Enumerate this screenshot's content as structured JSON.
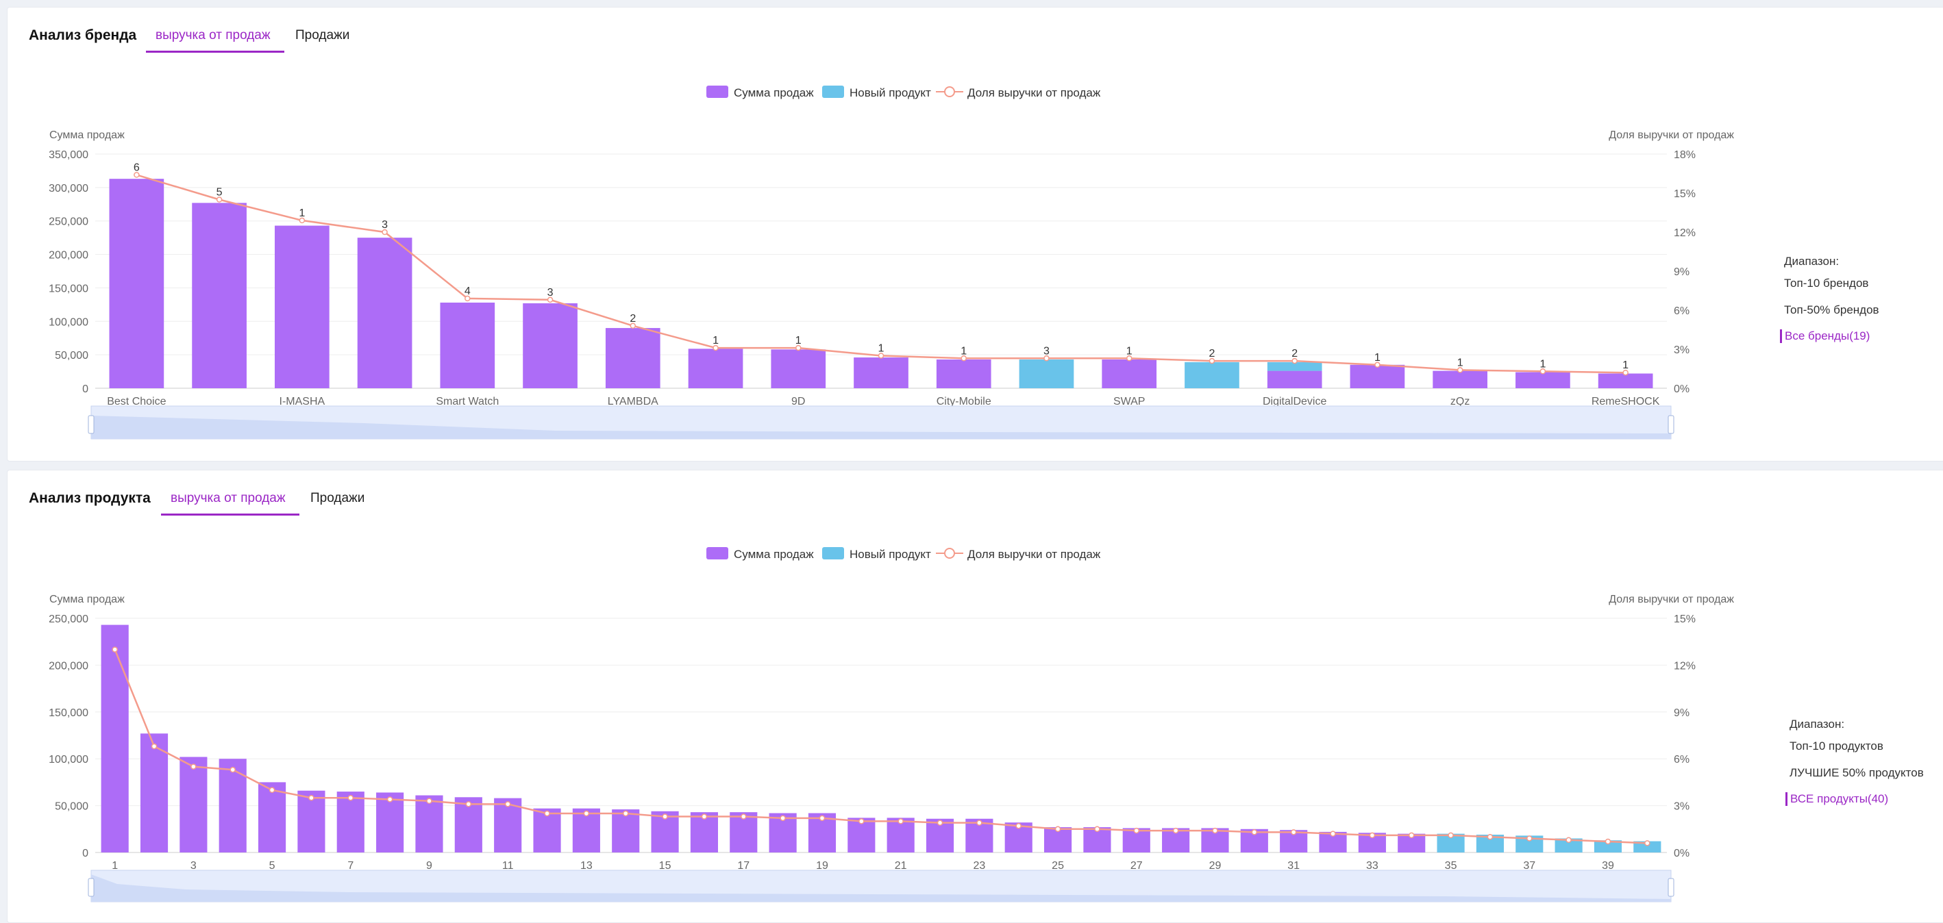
{
  "brand": {
    "title": "Анализ бренда",
    "tabs": [
      {
        "label": "выручка от продаж"
      },
      {
        "label": "Продажи"
      }
    ],
    "legend": {
      "sales": "Сумма продаж",
      "new": "Новый продукт",
      "share": "Доля выручки от продаж"
    },
    "range": {
      "heading": "Диапазон:",
      "top10": "Топ-10 брендов",
      "top50": "Топ-50% брендов",
      "all": "Все бренды(19)"
    }
  },
  "product": {
    "title": "Анализ продукта",
    "tabs": [
      {
        "label": "выручка от продаж"
      },
      {
        "label": "Продажи"
      }
    ],
    "legend": {
      "sales": "Сумма продаж",
      "new": "Новый продукт",
      "share": "Доля выручки от продаж"
    },
    "range": {
      "heading": "Диапазон:",
      "top10": "Топ-10 продуктов",
      "top50": "ЛУЧШИЕ 50% продуктов",
      "all": "ВСЕ продукты(40)"
    }
  },
  "colors": {
    "sales": "#ad6cf7",
    "new": "#69c3ea",
    "share": "#f49b8b",
    "accent": "#9b27c6"
  },
  "chart_data": [
    {
      "type": "bar",
      "ylabel": "Сумма продаж",
      "y2label": "Доля выручки от продаж",
      "ylim": [
        0,
        350000
      ],
      "y2lim": [
        0,
        18
      ],
      "yticks": [
        "0",
        "50,000",
        "100,000",
        "150,000",
        "200,000",
        "250,000",
        "300,000",
        "350,000"
      ],
      "y2ticks": [
        "0%",
        "3%",
        "6%",
        "9%",
        "12%",
        "15%",
        "18%"
      ],
      "xticklabels": [
        "Best Choice",
        "",
        "I-MASHA",
        "",
        "Smart Watch",
        "",
        "LYAMBDA",
        "",
        "9D",
        "",
        "City-Mobile",
        "",
        "SWAP",
        "",
        "DigitalDevice",
        "",
        "zQz",
        "",
        "RemeSHOCK"
      ],
      "series": [
        {
          "name": "Сумма продаж",
          "values": [
            313000,
            277000,
            243000,
            225000,
            128000,
            127000,
            90000,
            59000,
            58000,
            46000,
            43000,
            0,
            43000,
            0,
            26000,
            35000,
            26000,
            24000,
            22000
          ]
        },
        {
          "name": "Новый продукт",
          "values": [
            0,
            0,
            0,
            0,
            0,
            0,
            0,
            0,
            0,
            0,
            0,
            43000,
            0,
            39000,
            13000,
            0,
            0,
            0,
            0
          ]
        },
        {
          "name": "Доля выручки от продаж",
          "values": [
            16.4,
            14.5,
            12.9,
            12.0,
            6.9,
            6.8,
            4.8,
            3.1,
            3.1,
            2.5,
            2.3,
            2.3,
            2.3,
            2.1,
            2.1,
            1.8,
            1.4,
            1.3,
            1.2
          ]
        }
      ],
      "data_labels": [
        "6",
        "5",
        "1",
        "3",
        "4",
        "3",
        "2",
        "1",
        "1",
        "1",
        "1",
        "3",
        "1",
        "2",
        "2",
        "1",
        "1",
        "1",
        "1"
      ],
      "grid": true,
      "legend_position": "top-center"
    },
    {
      "type": "bar",
      "ylabel": "Сумма продаж",
      "y2label": "Доля выручки от продаж",
      "ylim": [
        0,
        250000
      ],
      "y2lim": [
        0,
        15
      ],
      "yticks": [
        "0",
        "50,000",
        "100,000",
        "150,000",
        "200,000",
        "250,000"
      ],
      "y2ticks": [
        "0%",
        "3%",
        "6%",
        "9%",
        "12%",
        "15%"
      ],
      "xticklabels": [
        "1",
        "",
        "3",
        "",
        "5",
        "",
        "7",
        "",
        "9",
        "",
        "11",
        "",
        "13",
        "",
        "15",
        "",
        "17",
        "",
        "19",
        "",
        "21",
        "",
        "23",
        "",
        "25",
        "",
        "27",
        "",
        "29",
        "",
        "31",
        "",
        "33",
        "",
        "35",
        "",
        "37",
        "",
        "39",
        ""
      ],
      "series": [
        {
          "name": "Сумма продаж",
          "values": [
            243000,
            127000,
            102000,
            100000,
            75000,
            66000,
            65000,
            64000,
            61000,
            59000,
            58000,
            47000,
            47000,
            46000,
            44000,
            43000,
            43000,
            42000,
            42000,
            37000,
            37000,
            36000,
            36000,
            32000,
            27000,
            27000,
            26000,
            26000,
            26000,
            25000,
            24000,
            22000,
            21000,
            20000,
            0,
            0,
            0,
            0,
            0,
            0
          ]
        },
        {
          "name": "Новый продукт",
          "values": [
            0,
            0,
            0,
            0,
            0,
            0,
            0,
            0,
            0,
            0,
            0,
            0,
            0,
            0,
            0,
            0,
            0,
            0,
            0,
            0,
            0,
            0,
            0,
            0,
            0,
            0,
            0,
            0,
            0,
            0,
            0,
            0,
            0,
            0,
            20000,
            19000,
            18000,
            15000,
            13000,
            12000
          ]
        },
        {
          "name": "Доля выручки от продаж",
          "values": [
            13.0,
            6.8,
            5.5,
            5.3,
            4.0,
            3.5,
            3.5,
            3.4,
            3.3,
            3.1,
            3.1,
            2.5,
            2.5,
            2.5,
            2.3,
            2.3,
            2.3,
            2.2,
            2.2,
            2.0,
            2.0,
            1.9,
            1.9,
            1.7,
            1.5,
            1.5,
            1.4,
            1.4,
            1.4,
            1.3,
            1.3,
            1.2,
            1.1,
            1.1,
            1.1,
            1.0,
            0.9,
            0.8,
            0.7,
            0.6
          ]
        }
      ],
      "grid": true,
      "legend_position": "top-center"
    }
  ]
}
